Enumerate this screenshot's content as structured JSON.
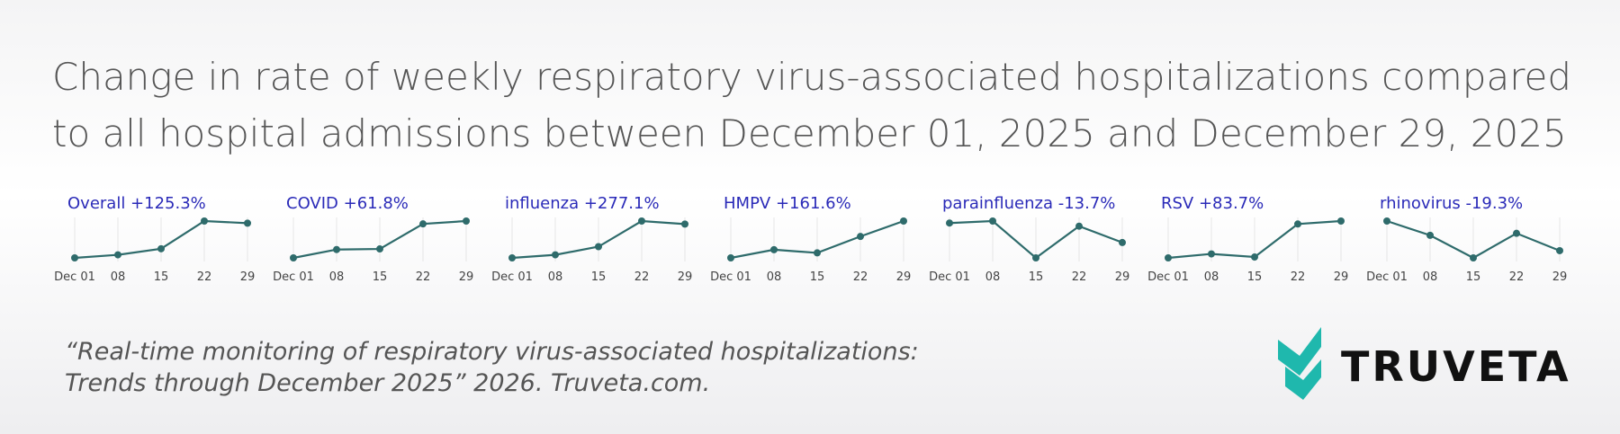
{
  "title": [
    "Change in rate of weekly respiratory virus-associated hospitalizations compared",
    "to all hospital admissions between December 01, 2025 and December 29, 2025"
  ],
  "chart_data": [
    {
      "type": "line",
      "title": "Overall +125.3%",
      "categories": [
        "Dec 01",
        "08",
        "15",
        "22",
        "29"
      ],
      "values": [
        100,
        111,
        133,
        233,
        225.3
      ],
      "color": "#2e6b6b"
    },
    {
      "type": "line",
      "title": "COVID +61.8%",
      "categories": [
        "Dec 01",
        "08",
        "15",
        "22",
        "29"
      ],
      "values": [
        100,
        114,
        115,
        157,
        161.8
      ],
      "color": "#2e6b6b"
    },
    {
      "type": "line",
      "title": "influenza +277.1%",
      "categories": [
        "Dec 01",
        "08",
        "15",
        "22",
        "29"
      ],
      "values": [
        100,
        125,
        192,
        402,
        377.1
      ],
      "color": "#2e6b6b"
    },
    {
      "type": "line",
      "title": "HMPV +161.6%",
      "categories": [
        "Dec 01",
        "08",
        "15",
        "22",
        "29"
      ],
      "values": [
        100,
        136,
        122,
        194,
        261.6
      ],
      "color": "#2e6b6b"
    },
    {
      "type": "line",
      "title": "parainfluenza -13.7%",
      "categories": [
        "Dec 01",
        "08",
        "15",
        "22",
        "29"
      ],
      "values": [
        100,
        101.4,
        75.5,
        97.8,
        86.3
      ],
      "color": "#2e6b6b"
    },
    {
      "type": "line",
      "title": "RSV +83.7%",
      "categories": [
        "Dec 01",
        "08",
        "15",
        "22",
        "29"
      ],
      "values": [
        100,
        109,
        102,
        177,
        183.7
      ],
      "color": "#2e6b6b"
    },
    {
      "type": "line",
      "title": "rhinovirus -19.3%",
      "categories": [
        "Dec 01",
        "08",
        "15",
        "22",
        "29"
      ],
      "values": [
        100,
        90.7,
        76,
        92,
        80.7
      ],
      "color": "#2e6b6b"
    }
  ],
  "citation": [
    "“Real-time monitoring of respiratory virus-associated hospitalizations:",
    "Trends through December 2025” 2026. Truveta.com."
  ],
  "logo": "TRUVETA"
}
